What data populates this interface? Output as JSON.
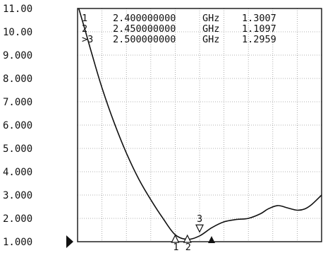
{
  "chart_data": {
    "type": "line",
    "title": "",
    "xlabel": "",
    "ylabel": "",
    "ylim": [
      1.0,
      11.0
    ],
    "y_ticks": [
      "11.00",
      "10.00",
      "9.000",
      "8.000",
      "7.000",
      "6.000",
      "5.000",
      "4.000",
      "3.000",
      "2.000",
      "1.000"
    ],
    "x_divisions": 10,
    "grid": true,
    "x_unit": "GHz",
    "xlim": [
      2.0,
      3.0
    ],
    "series": [
      {
        "x": [
          2.005,
          2.03,
          2.06,
          2.1,
          2.15,
          2.2,
          2.25,
          2.3,
          2.35,
          2.4,
          2.45,
          2.5,
          2.55,
          2.6,
          2.65,
          2.7,
          2.75,
          2.78,
          2.82,
          2.86,
          2.9,
          2.93,
          2.96,
          3.0
        ],
        "values": [
          11.0,
          10.1,
          9.0,
          7.6,
          6.1,
          4.8,
          3.7,
          2.8,
          2.0,
          1.3,
          1.1,
          1.25,
          1.6,
          1.85,
          1.95,
          2.0,
          2.2,
          2.4,
          2.55,
          2.45,
          2.35,
          2.4,
          2.6,
          3.0
        ]
      }
    ],
    "markers": [
      {
        "id": "1",
        "label": "1",
        "freq": "2.400000000",
        "unit": "GHz",
        "value": "1.3007",
        "x": 2.4,
        "y": 1.3007
      },
      {
        "id": "2",
        "label": "2",
        "freq": "2.450000000",
        "unit": "GHz",
        "value": "1.1097",
        "x": 2.45,
        "y": 1.1097
      },
      {
        "id": "3",
        "label": ">3",
        "freq": "2.500000000",
        "unit": "GHz",
        "value": "1.2959",
        "x": 2.5,
        "y": 1.2959
      }
    ],
    "active_marker": "3"
  }
}
